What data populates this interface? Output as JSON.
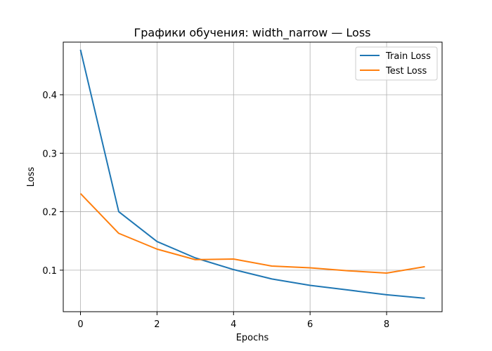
{
  "chart_data": {
    "type": "line",
    "title": "Графики обучения: width_narrow — Loss",
    "xlabel": "Epochs",
    "ylabel": "Loss",
    "xlim": [
      -0.45,
      9.45
    ],
    "ylim": [
      0.029,
      0.49
    ],
    "xticks": [
      0,
      2,
      4,
      6,
      8
    ],
    "yticks": [
      0.1,
      0.2,
      0.3,
      0.4
    ],
    "grid": true,
    "legend_position": "top-right",
    "x": [
      0,
      1,
      2,
      3,
      4,
      5,
      6,
      7,
      8,
      9
    ],
    "series": [
      {
        "name": "Train Loss",
        "color": "#1f77b4",
        "values": [
          0.477,
          0.2,
          0.149,
          0.121,
          0.101,
          0.085,
          0.074,
          0.066,
          0.058,
          0.052
        ]
      },
      {
        "name": "Test Loss",
        "color": "#ff7f0e",
        "values": [
          0.231,
          0.163,
          0.136,
          0.118,
          0.119,
          0.107,
          0.104,
          0.099,
          0.095,
          0.106
        ]
      }
    ]
  }
}
